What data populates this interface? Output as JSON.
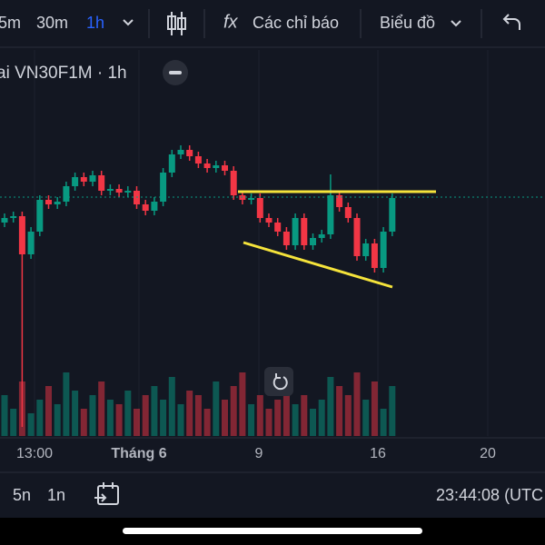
{
  "toolbar": {
    "intervals": [
      "5m",
      "30m",
      "1h"
    ],
    "indicator_icon": "fx",
    "indicators": "Các chỉ báo",
    "chart_type": "Biểu đồ"
  },
  "legend": {
    "symbol": "ai VN30F1M · 1h"
  },
  "chart_data": {
    "type": "candlestick",
    "x_labels": [
      "13:00",
      "Tháng 6",
      "9",
      "16",
      "20"
    ],
    "up_color": "#089981",
    "down_color": "#f23645",
    "open": [
      255,
      260,
      262,
      220,
      245,
      280,
      275,
      278,
      295,
      305,
      300,
      307,
      290,
      292,
      288,
      290,
      275,
      268,
      278,
      310,
      330,
      335,
      328,
      320,
      315,
      318,
      312,
      285,
      280,
      282,
      260,
      255,
      245,
      230,
      260,
      230,
      238,
      242,
      285,
      272,
      260,
      218,
      232,
      205,
      245
    ],
    "high": [
      265,
      267,
      267,
      250,
      285,
      285,
      283,
      300,
      310,
      310,
      312,
      312,
      297,
      297,
      295,
      295,
      280,
      283,
      315,
      335,
      340,
      340,
      333,
      325,
      323,
      323,
      317,
      290,
      287,
      287,
      265,
      260,
      250,
      265,
      265,
      243,
      247,
      308,
      290,
      277,
      265,
      237,
      237,
      250,
      287
    ],
    "low": [
      250,
      255,
      30,
      215,
      240,
      270,
      270,
      273,
      290,
      295,
      295,
      285,
      285,
      283,
      283,
      270,
      263,
      263,
      273,
      305,
      325,
      323,
      315,
      310,
      310,
      307,
      280,
      275,
      275,
      255,
      250,
      240,
      225,
      225,
      225,
      225,
      233,
      237,
      267,
      255,
      213,
      213,
      200,
      200,
      240
    ],
    "close": [
      260,
      262,
      220,
      245,
      280,
      275,
      278,
      295,
      305,
      300,
      307,
      290,
      292,
      288,
      290,
      275,
      268,
      278,
      310,
      330,
      335,
      328,
      320,
      315,
      318,
      312,
      285,
      280,
      282,
      260,
      255,
      245,
      230,
      260,
      230,
      238,
      242,
      285,
      272,
      260,
      218,
      232,
      205,
      245,
      282
    ],
    "volume": [
      45,
      30,
      60,
      25,
      40,
      55,
      35,
      70,
      50,
      30,
      45,
      60,
      40,
      35,
      50,
      30,
      45,
      55,
      40,
      65,
      35,
      50,
      45,
      30,
      60,
      40,
      55,
      70,
      35,
      45,
      30,
      40,
      50,
      35,
      45,
      30,
      40,
      65,
      55,
      45,
      70,
      40,
      60,
      30,
      55
    ]
  },
  "bottom_bar": {
    "ranges": [
      "5n",
      "1n"
    ],
    "clock": "23:44:08 (UTC"
  }
}
